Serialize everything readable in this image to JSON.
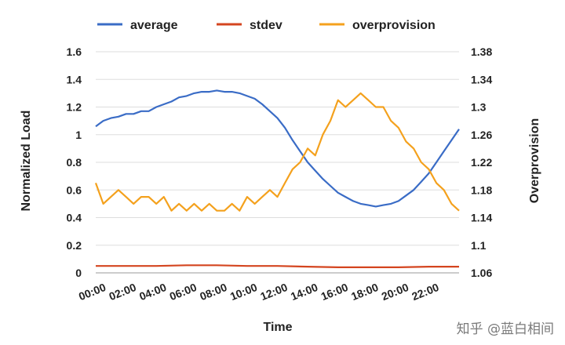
{
  "chart_data": {
    "type": "line",
    "xlabel": "Time",
    "ylabel_left": "Normalized Load",
    "ylabel_right": "Overprovision",
    "x_ticks": [
      "00:00",
      "02:00",
      "04:00",
      "06:00",
      "08:00",
      "10:00",
      "12:00",
      "14:00",
      "16:00",
      "18:00",
      "20:00",
      "22:00"
    ],
    "y_left_ticks": [
      "0",
      "0.2",
      "0.4",
      "0.6",
      "0.8",
      "1",
      "1.2",
      "1.4",
      "1.6"
    ],
    "y_right_ticks": [
      "1.06",
      "1.1",
      "1.14",
      "1.18",
      "1.22",
      "1.26",
      "1.3",
      "1.34",
      "1.38"
    ],
    "ylim_left": [
      0,
      1.6
    ],
    "ylim_right": [
      1.06,
      1.38
    ],
    "xlim_hours": [
      0,
      24
    ],
    "grid": true,
    "legend_position": "top",
    "colors": {
      "average": "#3a6cc6",
      "stdev": "#d4451f",
      "overprovision": "#f4a11d",
      "grid": "#dddddd"
    },
    "series": [
      {
        "name": "average",
        "axis": "left",
        "x": [
          0,
          0.5,
          1,
          1.5,
          2,
          2.5,
          3,
          3.5,
          4,
          4.5,
          5,
          5.5,
          6,
          6.5,
          7,
          7.5,
          8,
          8.5,
          9,
          9.5,
          10,
          10.5,
          11,
          11.5,
          12,
          12.5,
          13,
          13.5,
          14,
          14.5,
          15,
          15.5,
          16,
          16.5,
          17,
          17.5,
          18,
          18.5,
          19,
          19.5,
          20,
          20.5,
          21,
          21.5,
          22,
          22.5,
          23,
          23.5,
          24
        ],
        "values": [
          1.06,
          1.1,
          1.12,
          1.13,
          1.15,
          1.15,
          1.17,
          1.17,
          1.2,
          1.22,
          1.24,
          1.27,
          1.28,
          1.3,
          1.31,
          1.31,
          1.32,
          1.31,
          1.31,
          1.3,
          1.28,
          1.26,
          1.22,
          1.17,
          1.12,
          1.05,
          0.96,
          0.88,
          0.8,
          0.74,
          0.68,
          0.63,
          0.58,
          0.55,
          0.52,
          0.5,
          0.49,
          0.48,
          0.49,
          0.5,
          0.52,
          0.56,
          0.6,
          0.66,
          0.72,
          0.8,
          0.88,
          0.96,
          1.04
        ]
      },
      {
        "name": "stdev",
        "axis": "left",
        "x": [
          0,
          2,
          4,
          6,
          8,
          10,
          12,
          14,
          16,
          18,
          20,
          22,
          24
        ],
        "values": [
          0.05,
          0.05,
          0.05,
          0.055,
          0.055,
          0.05,
          0.05,
          0.045,
          0.04,
          0.04,
          0.04,
          0.045,
          0.045
        ]
      },
      {
        "name": "overprovision",
        "axis": "right",
        "x": [
          0,
          0.5,
          1,
          1.5,
          2,
          2.5,
          3,
          3.5,
          4,
          4.5,
          5,
          5.5,
          6,
          6.5,
          7,
          7.5,
          8,
          8.5,
          9,
          9.5,
          10,
          10.5,
          11,
          11.5,
          12,
          12.5,
          13,
          13.5,
          14,
          14.5,
          15,
          15.5,
          16,
          16.5,
          17,
          17.5,
          18,
          18.5,
          19,
          19.5,
          20,
          20.5,
          21,
          21.5,
          22,
          22.5,
          23,
          23.5,
          24
        ],
        "values": [
          1.19,
          1.16,
          1.17,
          1.18,
          1.17,
          1.16,
          1.17,
          1.17,
          1.16,
          1.17,
          1.15,
          1.16,
          1.15,
          1.16,
          1.15,
          1.16,
          1.15,
          1.15,
          1.16,
          1.15,
          1.17,
          1.16,
          1.17,
          1.18,
          1.17,
          1.19,
          1.21,
          1.22,
          1.24,
          1.23,
          1.26,
          1.28,
          1.31,
          1.3,
          1.31,
          1.32,
          1.31,
          1.3,
          1.3,
          1.28,
          1.27,
          1.25,
          1.24,
          1.22,
          1.21,
          1.19,
          1.18,
          1.16,
          1.15
        ]
      }
    ]
  },
  "watermark": "知乎 @蓝白相间"
}
